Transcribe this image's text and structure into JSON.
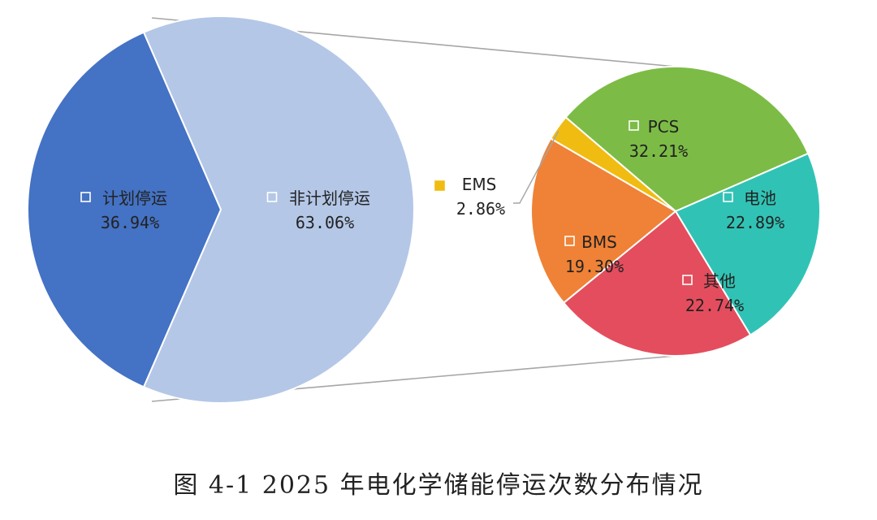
{
  "caption": "图 4-1 2025 年电化学储能停运次数分布情况",
  "chart_data": [
    {
      "type": "pie",
      "categories": [
        "计划停运",
        "非计划停运"
      ],
      "values": [
        36.94,
        63.06
      ],
      "labels": [
        "36.94%",
        "63.06%"
      ],
      "colors": [
        "#4472c4",
        "#b4c7e7"
      ]
    },
    {
      "type": "pie",
      "categories": [
        "PCS",
        "电池",
        "其他",
        "BMS",
        "EMS"
      ],
      "values": [
        32.21,
        22.89,
        22.74,
        19.3,
        2.86
      ],
      "labels": [
        "32.21%",
        "22.89%",
        "22.74%",
        "19.30%",
        "2.86%"
      ],
      "colors": [
        "#7cbc46",
        "#30c3b5",
        "#e44d5e",
        "#ef8236",
        "#f0bc12"
      ]
    }
  ]
}
